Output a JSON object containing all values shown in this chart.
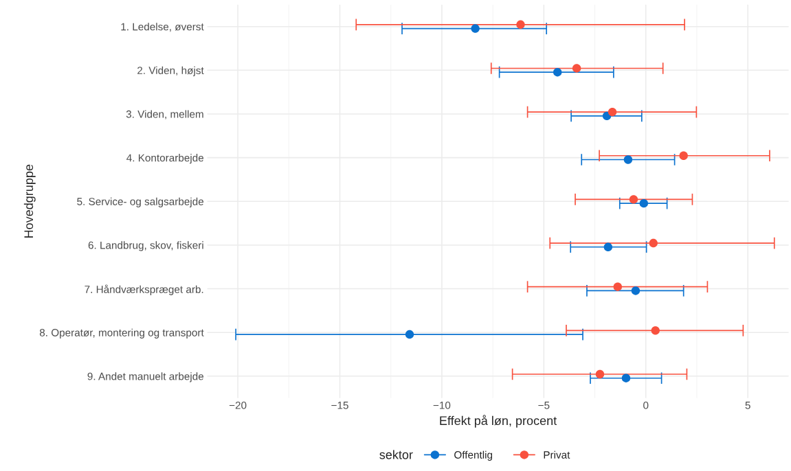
{
  "chart_data": {
    "type": "scatter",
    "orientation": "horizontal",
    "xlabel": "Effekt på løn, procent",
    "ylabel": "Hovedgruppe",
    "legend_title": "sektor",
    "legend": "bottom",
    "grid": true,
    "marker": "circle",
    "categories": [
      "1. Ledelse, øverst",
      "2. Viden, højst",
      "3. Viden, mellem",
      "4. Kontorarbejde",
      "5. Service- og salgsarbejde",
      "6. Landbrug, skov, fiskeri",
      "7. Håndværkspræget arb.",
      "8. Operatør, montering og transport",
      "9. Andet manuelt arbejde"
    ],
    "xlim": [
      -21.5,
      7
    ],
    "xticks": [
      -20,
      -15,
      -10,
      -5,
      0,
      5
    ],
    "series": [
      {
        "name": "Offentlig",
        "color": "#0b72cf",
        "values": [
          -8.36,
          -4.33,
          -1.91,
          -0.87,
          -0.1,
          -1.85,
          -0.5,
          -11.58,
          -0.97
        ],
        "errors": [
          [
            -11.95,
            -4.87
          ],
          [
            -7.18,
            -1.58
          ],
          [
            -3.66,
            -0.2
          ],
          [
            -3.15,
            1.41
          ],
          [
            -1.28,
            1.04
          ],
          [
            -3.69,
            0.03
          ],
          [
            -2.89,
            1.85
          ],
          [
            -20.1,
            -3.09
          ],
          [
            -2.72,
            0.77
          ]
        ]
      },
      {
        "name": "Privat",
        "color": "#f8513e",
        "values": [
          -6.14,
          -3.39,
          -1.64,
          1.85,
          -0.6,
          0.37,
          -1.38,
          0.47,
          -2.25
        ],
        "errors": [
          [
            -14.2,
            1.9
          ],
          [
            -7.58,
            0.84
          ],
          [
            -5.8,
            2.48
          ],
          [
            -2.28,
            6.07
          ],
          [
            -3.46,
            2.28
          ],
          [
            -4.7,
            6.3
          ],
          [
            -5.8,
            3.02
          ],
          [
            -3.9,
            4.77
          ],
          [
            -6.54,
            2.01
          ]
        ]
      }
    ]
  }
}
